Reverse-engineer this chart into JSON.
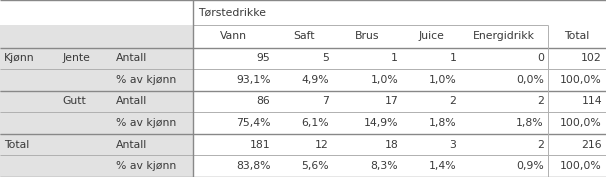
{
  "title": "Tørstedrikke",
  "col_headers": [
    "Vann",
    "Saft",
    "Brus",
    "Juice",
    "Energidrikk",
    "Total"
  ],
  "row_structure": [
    {
      "level1": "Kjønn",
      "level2": "Jente",
      "level3": "Antall",
      "values": [
        "95",
        "5",
        "1",
        "1",
        "0",
        "102"
      ]
    },
    {
      "level1": "",
      "level2": "",
      "level3": "% av kjønn",
      "values": [
        "93,1%",
        "4,9%",
        "1,0%",
        "1,0%",
        "0,0%",
        "100,0%"
      ]
    },
    {
      "level1": "",
      "level2": "Gutt",
      "level3": "Antall",
      "values": [
        "86",
        "7",
        "17",
        "2",
        "2",
        "114"
      ]
    },
    {
      "level1": "",
      "level2": "",
      "level3": "% av kjønn",
      "values": [
        "75,4%",
        "6,1%",
        "14,9%",
        "1,8%",
        "1,8%",
        "100,0%"
      ]
    },
    {
      "level1": "Total",
      "level2": "",
      "level3": "Antall",
      "values": [
        "181",
        "12",
        "18",
        "3",
        "2",
        "216"
      ]
    },
    {
      "level1": "",
      "level2": "",
      "level3": "% av kjønn",
      "values": [
        "83,8%",
        "5,6%",
        "8,3%",
        "1,4%",
        "0,9%",
        "100,0%"
      ]
    }
  ],
  "bg_gray": "#e2e2e2",
  "bg_white": "#ffffff",
  "text_color": "#3a3a3a",
  "line_color": "#b0b0b0",
  "thick_line_color": "#888888",
  "font_size": 7.8
}
